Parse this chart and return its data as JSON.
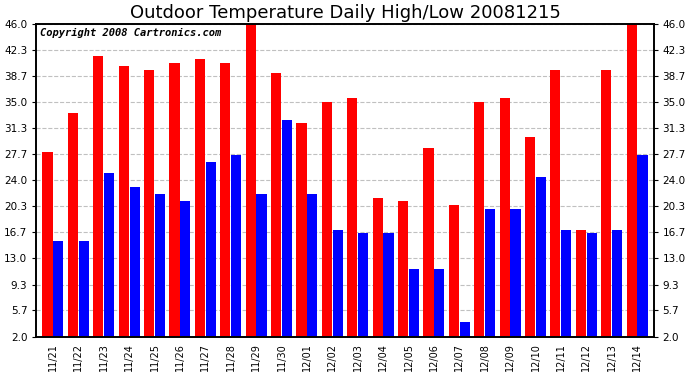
{
  "title": "Outdoor Temperature Daily High/Low 20081215",
  "copyright": "Copyright 2008 Cartronics.com",
  "dates": [
    "11/21",
    "11/22",
    "11/23",
    "11/24",
    "11/25",
    "11/26",
    "11/27",
    "11/28",
    "11/29",
    "11/30",
    "12/01",
    "12/02",
    "12/03",
    "12/04",
    "12/05",
    "12/06",
    "12/07",
    "12/08",
    "12/09",
    "12/10",
    "12/11",
    "12/12",
    "12/13",
    "12/14"
  ],
  "highs": [
    28.0,
    33.5,
    41.5,
    40.0,
    39.5,
    40.5,
    41.0,
    40.5,
    46.0,
    39.0,
    32.0,
    35.0,
    35.5,
    21.5,
    21.0,
    28.5,
    20.5,
    35.0,
    35.5,
    30.0,
    39.5,
    17.0,
    39.5,
    46.0
  ],
  "lows": [
    15.5,
    15.5,
    25.0,
    23.0,
    22.0,
    21.0,
    26.5,
    27.5,
    22.0,
    32.5,
    22.0,
    17.0,
    16.5,
    16.5,
    11.5,
    11.5,
    4.0,
    20.0,
    20.0,
    24.5,
    17.0,
    16.5,
    17.0,
    27.5
  ],
  "high_color": "#ff0000",
  "low_color": "#0000ff",
  "bg_color": "#ffffff",
  "plot_bg_color": "#ffffff",
  "grid_color": "#c0c0c0",
  "yticks": [
    2.0,
    5.7,
    9.3,
    13.0,
    16.7,
    20.3,
    24.0,
    27.7,
    31.3,
    35.0,
    38.7,
    42.3,
    46.0
  ],
  "ymin": 0.0,
  "ymax": 46.0,
  "yaxis_min": 2.0,
  "yaxis_max": 46.0,
  "title_fontsize": 13,
  "copyright_fontsize": 7.5
}
